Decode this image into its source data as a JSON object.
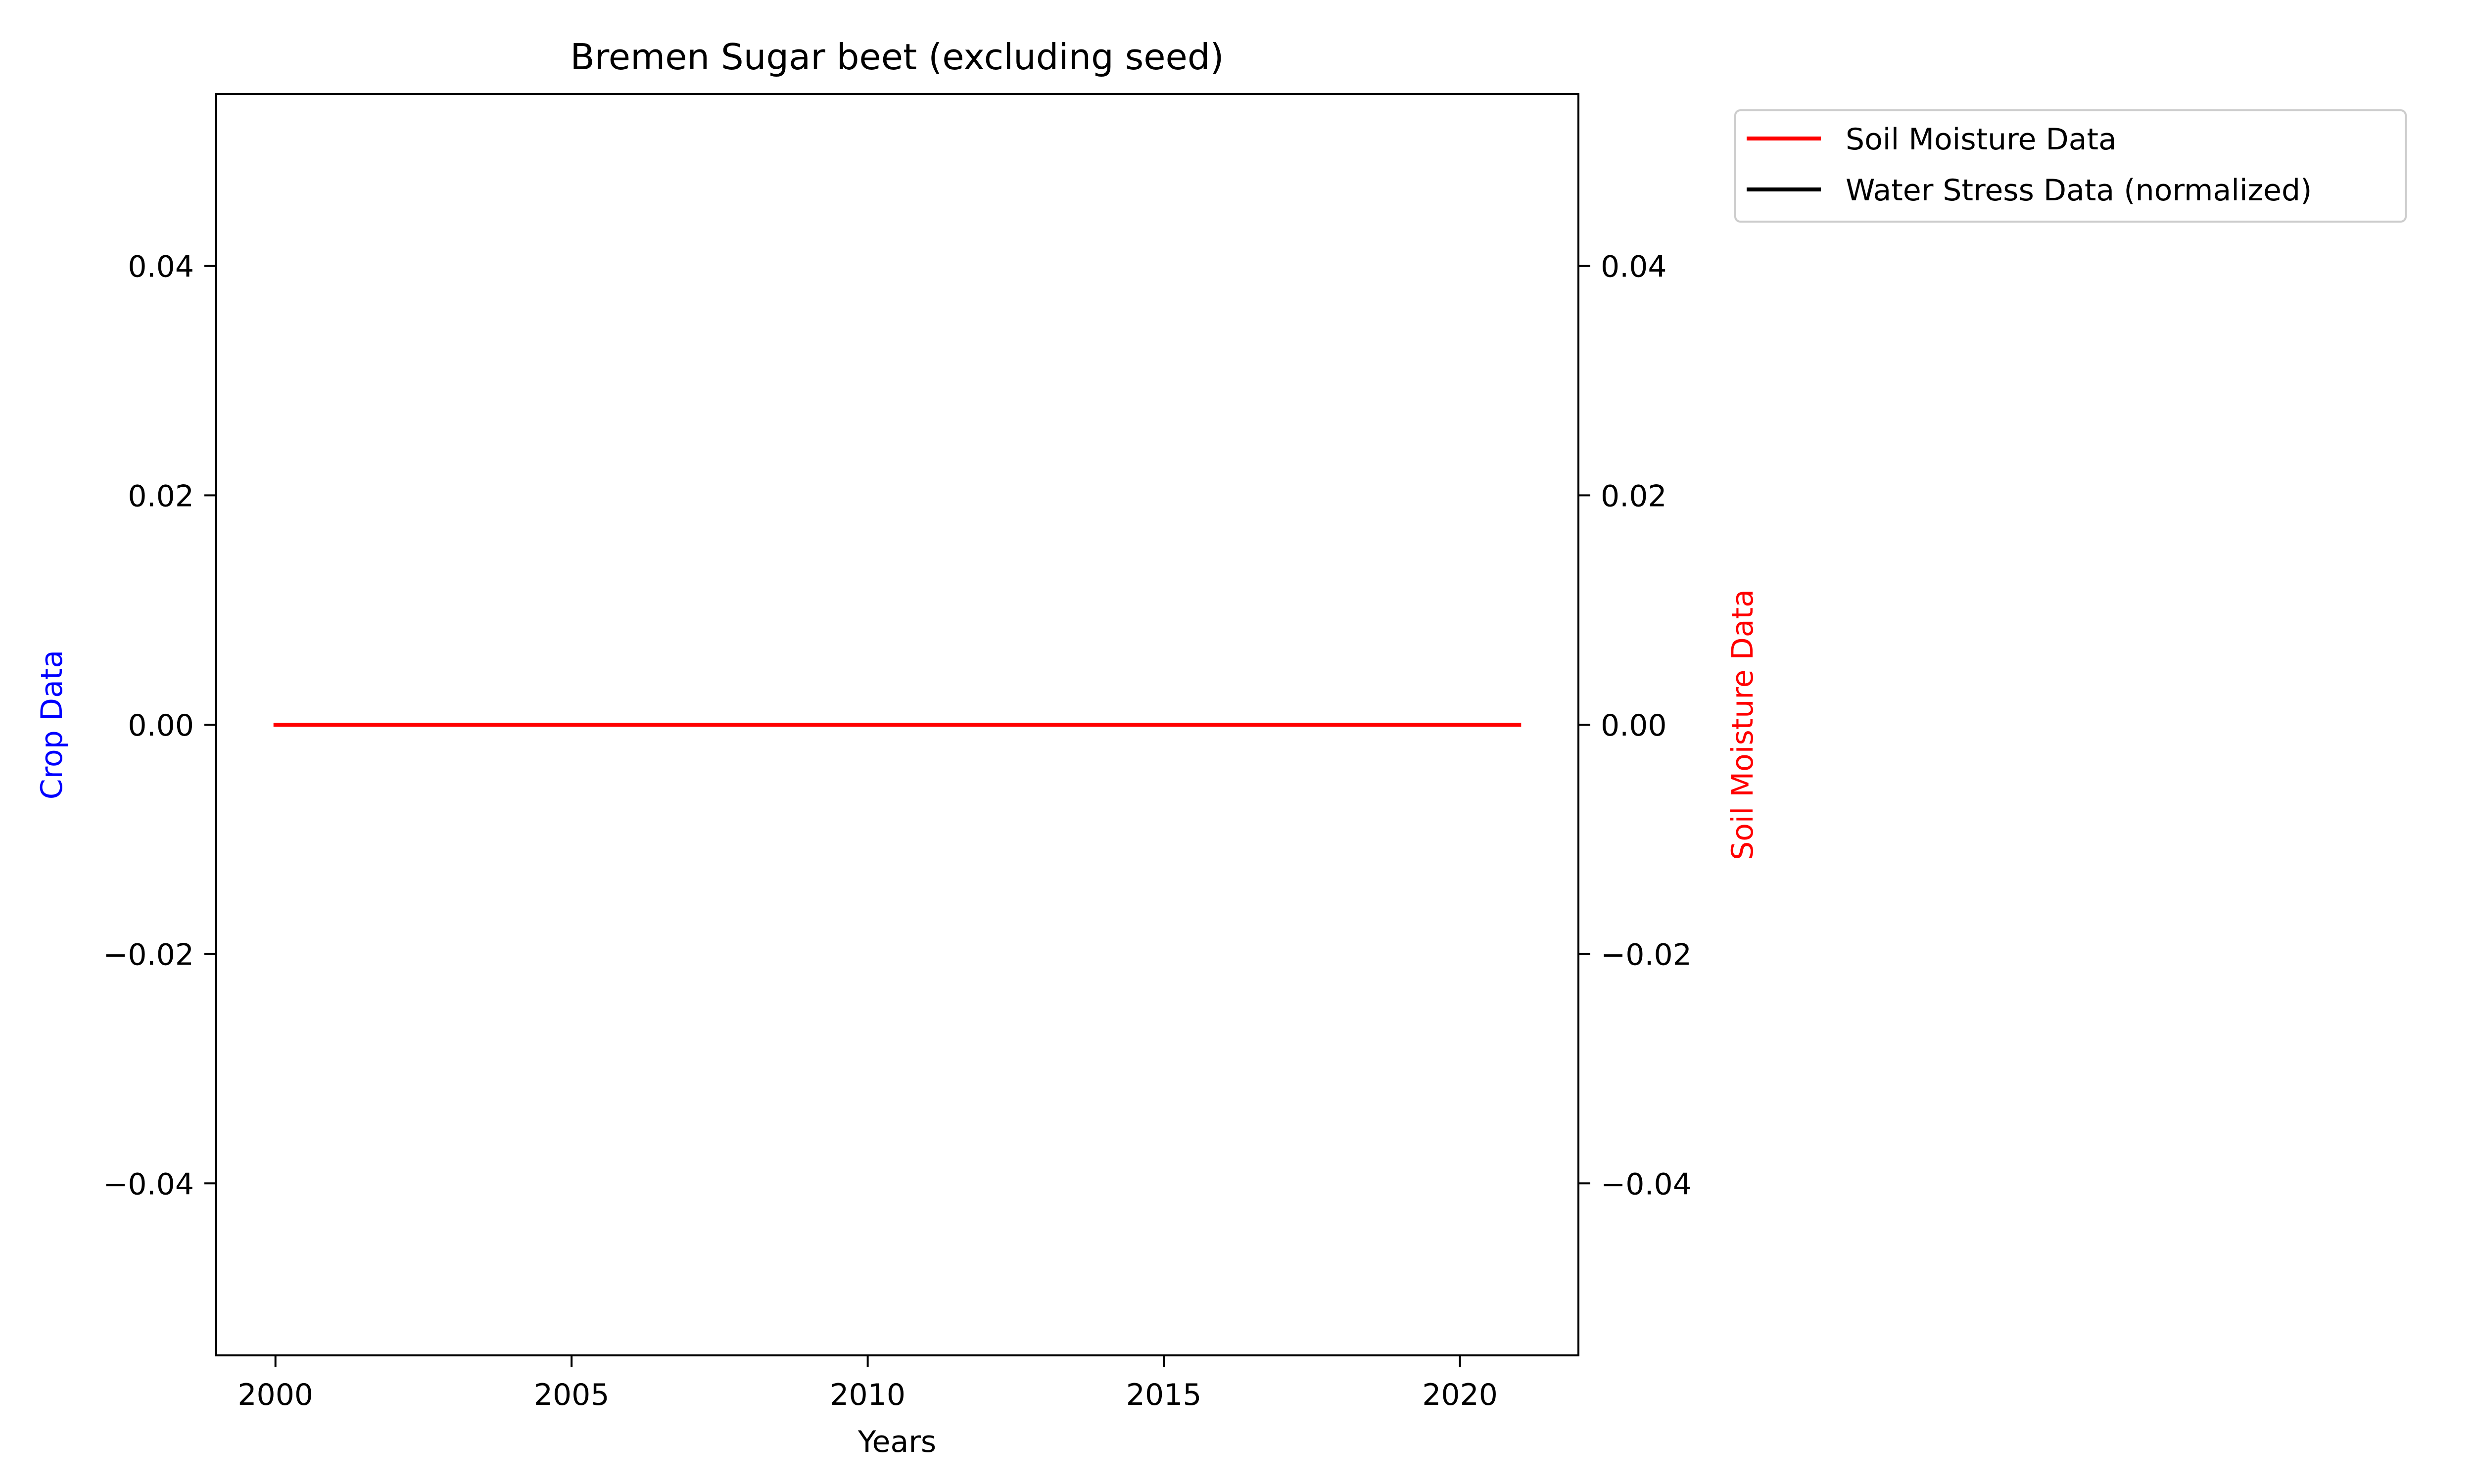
{
  "chart_data": {
    "type": "line",
    "title": "Bremen Sugar beet (excluding seed)",
    "xlabel": "Years",
    "ylabel_left": "Crop Data",
    "ylabel_right": "Soil Moisture Data",
    "xlim": [
      1999,
      2022
    ],
    "ylim": [
      -0.055,
      0.055
    ],
    "x_ticks": [
      2000,
      2005,
      2010,
      2015,
      2020
    ],
    "y_ticks": [
      -0.04,
      -0.02,
      0.0,
      0.02,
      0.04
    ],
    "y_tick_labels": [
      "−0.04",
      "−0.02",
      "0.00",
      "0.02",
      "0.04"
    ],
    "grid": false,
    "legend_position": "outside-top-right",
    "colors": {
      "ylabel_left": "#0000ff",
      "ylabel_right": "#ff0000"
    },
    "series": [
      {
        "name": "Soil Moisture Data",
        "color": "#ff0000",
        "axis": "right",
        "x": [
          2000,
          2001,
          2002,
          2003,
          2004,
          2005,
          2006,
          2007,
          2008,
          2009,
          2010,
          2011,
          2012,
          2013,
          2014,
          2015,
          2016,
          2017,
          2018,
          2019,
          2020,
          2021
        ],
        "values": [
          0,
          0,
          0,
          0,
          0,
          0,
          0,
          0,
          0,
          0,
          0,
          0,
          0,
          0,
          0,
          0,
          0,
          0,
          0,
          0,
          0,
          0
        ]
      },
      {
        "name": "Water Stress Data (normalized)",
        "color": "#000000",
        "axis": "right",
        "x": [],
        "values": []
      }
    ]
  }
}
